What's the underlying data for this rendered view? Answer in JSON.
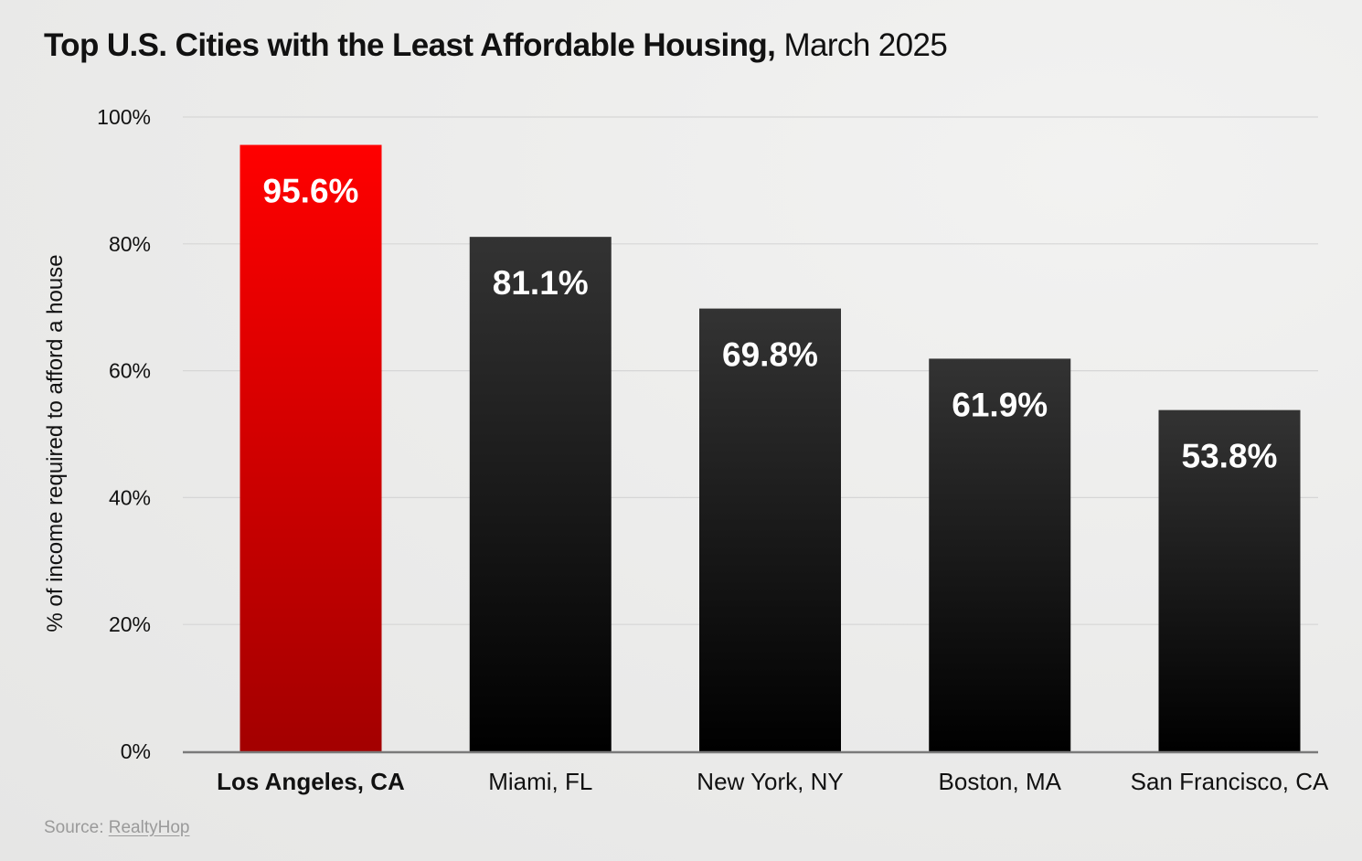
{
  "chart_data": {
    "type": "bar",
    "title": "Top U.S. Cities with the Least Affordable Housing,",
    "subtitle": "March 2025",
    "xlabel": "",
    "ylabel": "% of income required to afford a house",
    "categories": [
      "Los Angeles, CA",
      "Miami, FL",
      "New York, NY",
      "Boston, MA",
      "San Francisco, CA"
    ],
    "values": [
      95.6,
      81.1,
      69.8,
      61.9,
      53.8
    ],
    "data_labels": [
      "95.6%",
      "81.1%",
      "69.8%",
      "61.9%",
      "53.8%"
    ],
    "highlighted_category": "Los Angeles, CA",
    "ylim": [
      0,
      100
    ],
    "yticks": [
      0,
      20,
      40,
      60,
      80,
      100
    ],
    "ytick_labels": [
      "0%",
      "20%",
      "40%",
      "60%",
      "80%",
      "100%"
    ],
    "grid": true,
    "legend": "none"
  },
  "source": {
    "prefix": "Source: ",
    "name": "RealtyHop"
  },
  "colors": {
    "highlight_top": "#ff0000",
    "highlight_bottom": "#a30000",
    "bar_top": "#333333",
    "bar_bottom": "#000000",
    "label_text": "#ffffff",
    "grid": "#d6d6d6",
    "axis": "#7a7a7a",
    "text": "#111111"
  }
}
